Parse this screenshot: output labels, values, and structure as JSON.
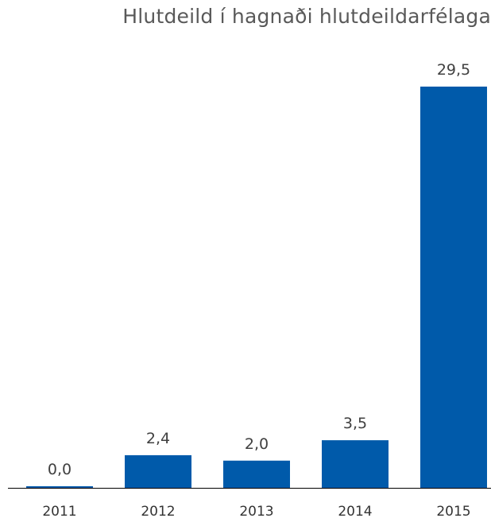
{
  "chart_data": {
    "type": "bar",
    "title": "Hlutdeild í hagnaði hlutdeildarfélaga",
    "categories": [
      "2011",
      "2012",
      "2013",
      "2014",
      "2015"
    ],
    "values": [
      0.0,
      2.4,
      2.0,
      3.5,
      29.5
    ],
    "data_labels": [
      "0,0",
      "2,4",
      "2,0",
      "3,5",
      "29,5"
    ],
    "xlabel": "",
    "ylabel": "",
    "ylim": [
      0,
      29.5
    ],
    "grid": false,
    "legend": "none",
    "bar_color": "#005AAA",
    "axis_color": "#000000"
  }
}
